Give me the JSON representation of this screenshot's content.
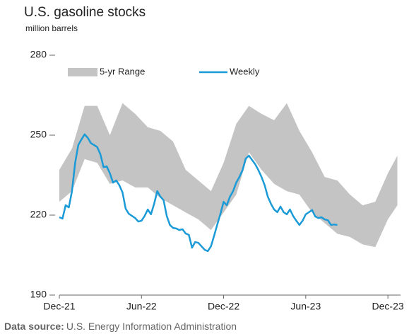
{
  "chart_data": {
    "type": "line",
    "title": "U.S. gasoline stocks",
    "subtitle": "million barrels",
    "source_label": "Data source:",
    "source": "U.S. Energy Information Administration",
    "xlim": [
      0,
      108
    ],
    "xticks": [
      {
        "value": 0,
        "label": "Dec-21"
      },
      {
        "value": 26,
        "label": "Jun-22"
      },
      {
        "value": 52,
        "label": "Dec-22"
      },
      {
        "value": 78,
        "label": "Jun-23"
      },
      {
        "value": 104,
        "label": "Dec-23"
      }
    ],
    "ylim": [
      190,
      280
    ],
    "yticks": [
      190,
      220,
      250,
      280
    ],
    "grid": false,
    "series": [
      {
        "name": "5-yr Range",
        "color": "#c4c4c4",
        "x": [
          0,
          4,
          8,
          12,
          16,
          20,
          24,
          28,
          32,
          36,
          40,
          44,
          48,
          52,
          56,
          60,
          64,
          68,
          72,
          76,
          80,
          84,
          88,
          92,
          96,
          100,
          104,
          107
        ],
        "high": [
          237,
          245,
          261,
          261,
          250,
          262,
          258,
          253,
          251.6,
          247.6,
          237,
          233,
          229,
          239.6,
          254.2,
          261,
          258,
          255.6,
          262,
          251.6,
          243.6,
          234.3,
          233,
          227.7,
          223.7,
          225,
          235.7,
          242.3
        ],
        "low": [
          225,
          229,
          241,
          239.6,
          231.7,
          233,
          230.4,
          230.4,
          226.4,
          223.7,
          221,
          218.4,
          214.4,
          221,
          227.7,
          243.6,
          237,
          231.7,
          229,
          227.7,
          221,
          217,
          213,
          211.8,
          209,
          208,
          218.4,
          223.7
        ]
      },
      {
        "name": "Weekly",
        "color": "#1a9ad6",
        "x": [
          0,
          1,
          2,
          3,
          4,
          5,
          6,
          7,
          8,
          9,
          10,
          11,
          12,
          13,
          14,
          15,
          16,
          17,
          18,
          19,
          20,
          21,
          22,
          23,
          24,
          25,
          26,
          27,
          28,
          29,
          30,
          31,
          32,
          33,
          34,
          35,
          36,
          37,
          38,
          39,
          40,
          41,
          42,
          43,
          44,
          45,
          46,
          47,
          48,
          49,
          50,
          51,
          52,
          53,
          54,
          55,
          56,
          57,
          58,
          59,
          60,
          61,
          62,
          63,
          64,
          65,
          66,
          67,
          68,
          69,
          70,
          71,
          72,
          73,
          74,
          75,
          76,
          77,
          78,
          79,
          80,
          81,
          82,
          83,
          84,
          85,
          86,
          87,
          88
        ],
        "values": [
          219.2,
          218.7,
          223.7,
          222.9,
          229,
          239.6,
          246.3,
          248.4,
          250.3,
          249,
          247,
          246.3,
          245.5,
          242.8,
          238,
          238.3,
          235.7,
          232.2,
          233,
          231.2,
          228.5,
          222.4,
          220.5,
          219.7,
          218.9,
          217.6,
          217.9,
          219.7,
          222.1,
          220.3,
          224.2,
          229,
          226.9,
          225.6,
          219.7,
          216.3,
          215.2,
          215,
          214.4,
          214.7,
          213.1,
          212.6,
          207.8,
          209.9,
          209.6,
          208.3,
          207,
          206.5,
          208.3,
          212.3,
          216.5,
          220.5,
          225,
          223.7,
          226.9,
          229,
          232.2,
          234.3,
          236.9,
          241.2,
          242.3,
          240.7,
          239.1,
          236.9,
          234.3,
          231.2,
          226.9,
          224.2,
          222.1,
          221.1,
          223.2,
          221.1,
          220.3,
          222.1,
          219.7,
          217.9,
          216.3,
          217.9,
          220.3,
          221.1,
          221.9,
          219.5,
          218.9,
          219.2,
          218.4,
          218.1,
          216.3,
          216.5,
          216.3
        ]
      }
    ]
  }
}
